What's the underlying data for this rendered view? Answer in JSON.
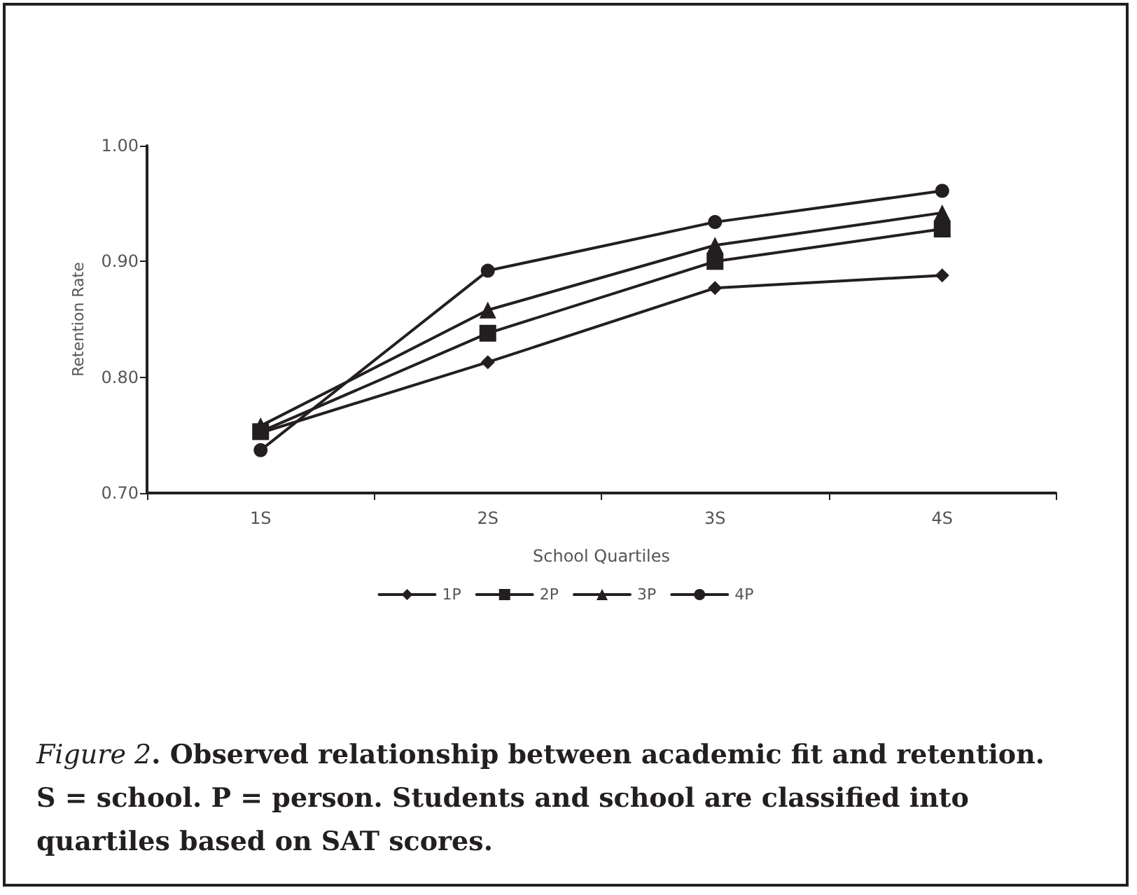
{
  "chart_data": {
    "type": "line",
    "categories": [
      "1S",
      "2S",
      "3S",
      "4S"
    ],
    "series": [
      {
        "name": "1P",
        "color": "#231f20",
        "marker": "diamond",
        "values": [
          0.752,
          0.813,
          0.877,
          0.888
        ]
      },
      {
        "name": "2P",
        "color": "#231f20",
        "marker": "square",
        "values": [
          0.753,
          0.838,
          0.9,
          0.928
        ]
      },
      {
        "name": "3P",
        "color": "#231f20",
        "marker": "triangle",
        "values": [
          0.758,
          0.858,
          0.914,
          0.942
        ]
      },
      {
        "name": "4P",
        "color": "#231f20",
        "marker": "circle",
        "values": [
          0.737,
          0.892,
          0.934,
          0.961
        ]
      }
    ],
    "xlabel": "School Quartiles",
    "ylabel": "Retention Rate",
    "ylim": [
      0.7,
      1.0
    ],
    "yticks": [
      {
        "value": 0.7,
        "label": "0.70"
      },
      {
        "value": 0.8,
        "label": "0.80"
      },
      {
        "value": 0.9,
        "label": "0.90"
      },
      {
        "value": 1.0,
        "label": "1.00"
      }
    ],
    "grid": false,
    "legend": "bottom",
    "annotations": [
      "Figure 2. Observed relationship between academic fit and retention. S = school. P = person. Students and school are classified into quartiles based on SAT scores."
    ]
  }
}
